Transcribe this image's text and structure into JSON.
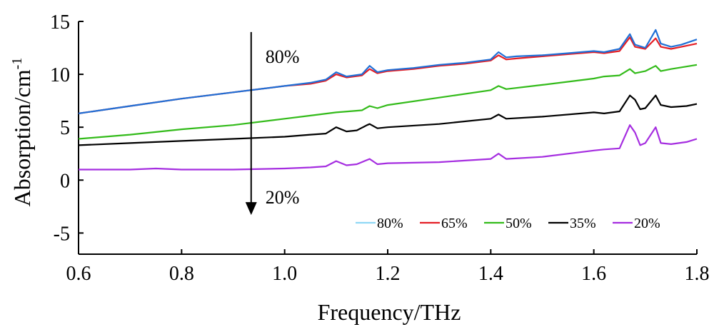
{
  "chart_data": {
    "type": "line",
    "xlabel": "Frequency/THz",
    "ylabel": "Absorption/cm",
    "ylabel_sup": "-1",
    "xlim": [
      0.6,
      1.8
    ],
    "ylim": [
      -7,
      15
    ],
    "xticks": [
      0.6,
      0.8,
      1.0,
      1.2,
      1.4,
      1.6,
      1.8
    ],
    "xtick_labels": [
      "0.6",
      "0.8",
      "1.0",
      "1.2",
      "1.4",
      "1.6",
      "1.8"
    ],
    "yticks": [
      -5,
      0,
      5,
      10,
      15
    ],
    "ytick_labels": [
      "-5",
      "0",
      "5",
      "10",
      "15"
    ],
    "grid": false,
    "legend_position": "bottom-right",
    "annotations": {
      "arrow_x": 0.935,
      "arrow_from_y": 14,
      "arrow_to_y": -3.3,
      "top_label": "80%",
      "top_label_y": 11.1,
      "bottom_label": "20%",
      "bottom_label_y": -2.2
    },
    "series": [
      {
        "name": "80%",
        "color": "#1f6fd6",
        "legend_color": "#8fd8f5",
        "x": [
          0.6,
          0.7,
          0.8,
          0.9,
          1.0,
          1.05,
          1.08,
          1.1,
          1.12,
          1.15,
          1.165,
          1.18,
          1.2,
          1.25,
          1.3,
          1.35,
          1.4,
          1.415,
          1.43,
          1.45,
          1.5,
          1.55,
          1.6,
          1.62,
          1.65,
          1.67,
          1.68,
          1.7,
          1.72,
          1.73,
          1.75,
          1.77,
          1.8
        ],
        "y": [
          6.3,
          7.0,
          7.7,
          8.3,
          8.9,
          9.2,
          9.5,
          10.2,
          9.8,
          10.0,
          10.8,
          10.2,
          10.4,
          10.6,
          10.9,
          11.1,
          11.4,
          12.1,
          11.6,
          11.7,
          11.8,
          12.0,
          12.2,
          12.1,
          12.4,
          13.8,
          12.8,
          12.5,
          14.2,
          12.9,
          12.6,
          12.8,
          13.3
        ]
      },
      {
        "name": "65%",
        "color": "#e41f26",
        "legend_color": "#e41f26",
        "x": [
          0.6,
          0.7,
          0.8,
          0.9,
          1.0,
          1.05,
          1.08,
          1.1,
          1.12,
          1.15,
          1.165,
          1.18,
          1.2,
          1.25,
          1.3,
          1.35,
          1.4,
          1.415,
          1.43,
          1.45,
          1.5,
          1.55,
          1.6,
          1.62,
          1.65,
          1.67,
          1.68,
          1.7,
          1.72,
          1.73,
          1.75,
          1.77,
          1.8
        ],
        "y": [
          6.3,
          7.0,
          7.7,
          8.3,
          8.9,
          9.1,
          9.4,
          10.0,
          9.7,
          9.9,
          10.5,
          10.1,
          10.3,
          10.5,
          10.8,
          11.0,
          11.3,
          11.8,
          11.4,
          11.5,
          11.7,
          11.9,
          12.1,
          12.0,
          12.2,
          13.5,
          12.6,
          12.4,
          13.4,
          12.6,
          12.4,
          12.6,
          12.9
        ]
      },
      {
        "name": "50%",
        "color": "#33bb1a",
        "legend_color": "#33bb1a",
        "x": [
          0.6,
          0.7,
          0.8,
          0.9,
          1.0,
          1.05,
          1.1,
          1.15,
          1.165,
          1.18,
          1.2,
          1.3,
          1.4,
          1.415,
          1.43,
          1.5,
          1.6,
          1.62,
          1.65,
          1.67,
          1.68,
          1.7,
          1.72,
          1.73,
          1.75,
          1.8
        ],
        "y": [
          3.9,
          4.3,
          4.8,
          5.2,
          5.8,
          6.1,
          6.4,
          6.6,
          7.0,
          6.8,
          7.1,
          7.8,
          8.5,
          8.9,
          8.6,
          9.0,
          9.6,
          9.8,
          9.9,
          10.5,
          10.1,
          10.3,
          10.8,
          10.3,
          10.5,
          10.9
        ]
      },
      {
        "name": "35%",
        "color": "#000000",
        "legend_color": "#000000",
        "x": [
          0.6,
          0.7,
          0.8,
          0.9,
          1.0,
          1.05,
          1.08,
          1.1,
          1.12,
          1.14,
          1.16,
          1.165,
          1.18,
          1.2,
          1.3,
          1.4,
          1.415,
          1.43,
          1.5,
          1.6,
          1.62,
          1.65,
          1.67,
          1.68,
          1.69,
          1.7,
          1.72,
          1.73,
          1.75,
          1.78,
          1.8
        ],
        "y": [
          3.3,
          3.5,
          3.7,
          3.9,
          4.1,
          4.3,
          4.4,
          5.0,
          4.6,
          4.7,
          5.2,
          5.3,
          4.9,
          5.0,
          5.3,
          5.8,
          6.2,
          5.8,
          6.0,
          6.4,
          6.3,
          6.5,
          8.0,
          7.6,
          6.7,
          6.8,
          8.0,
          7.1,
          6.9,
          7.0,
          7.2
        ]
      },
      {
        "name": "20%",
        "color": "#a52de0",
        "legend_color": "#a52de0",
        "x": [
          0.6,
          0.7,
          0.75,
          0.8,
          0.9,
          1.0,
          1.05,
          1.08,
          1.1,
          1.12,
          1.14,
          1.165,
          1.18,
          1.2,
          1.3,
          1.4,
          1.415,
          1.43,
          1.5,
          1.6,
          1.62,
          1.65,
          1.67,
          1.68,
          1.69,
          1.7,
          1.72,
          1.73,
          1.75,
          1.78,
          1.8
        ],
        "y": [
          1.0,
          1.0,
          1.1,
          1.0,
          1.0,
          1.1,
          1.2,
          1.3,
          1.8,
          1.4,
          1.5,
          2.0,
          1.5,
          1.6,
          1.7,
          2.0,
          2.5,
          2.0,
          2.2,
          2.8,
          2.9,
          3.0,
          5.2,
          4.5,
          3.3,
          3.5,
          5.0,
          3.5,
          3.4,
          3.6,
          3.9
        ]
      }
    ]
  }
}
